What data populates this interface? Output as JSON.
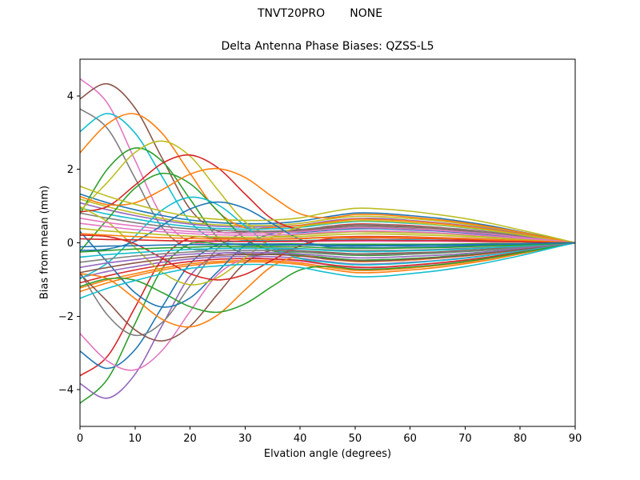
{
  "figure": {
    "suptitle": "TNVT20PRO       NONE",
    "title": "Delta Antenna Phase Biases: QZSS-L5",
    "background": "#ffffff"
  },
  "axes": {
    "xlabel": "Elvation angle (degrees)",
    "ylabel": "Bias from mean (mm)",
    "xticks": [
      0,
      10,
      20,
      30,
      40,
      50,
      60,
      70,
      80,
      90
    ],
    "yticks": [
      -4,
      -2,
      0,
      2,
      4
    ],
    "xlim": [
      0,
      90
    ],
    "ylim": [
      -5,
      5
    ],
    "spine_color": "#000000",
    "tick_color": "#000000",
    "text_color": "#000000"
  },
  "chart_data": {
    "type": "line",
    "title": "Delta Antenna Phase Biases: QZSS-L5",
    "subtitle": "TNVT20PRO       NONE",
    "xlabel": "Elvation angle (degrees)",
    "ylabel": "Bias from mean (mm)",
    "xlim": [
      0,
      90
    ],
    "ylim": [
      -5,
      5
    ],
    "grid": false,
    "legend": "none",
    "line_width": 1.6,
    "palette": [
      "#1f77b4",
      "#ff7f0e",
      "#2ca02c",
      "#d62728",
      "#9467bd",
      "#8c564b",
      "#e377c2",
      "#7f7f7f",
      "#bcbd22",
      "#17becf"
    ],
    "x": [
      0,
      5,
      10,
      15,
      20,
      25,
      30,
      35,
      40,
      45,
      50,
      55,
      60,
      65,
      70,
      75,
      80,
      85,
      90
    ],
    "series": [
      {
        "color": "#e377c2",
        "y": [
          4.47,
          3.8,
          2.25,
          0.7,
          0.03,
          0.03,
          0.03,
          0.03,
          0.03,
          0.04,
          0.04,
          0.04,
          0.04,
          0.04,
          0.03,
          0.02,
          0.02,
          0.01,
          0.0
        ]
      },
      {
        "color": "#2ca02c",
        "y": [
          -4.37,
          -3.71,
          -2.2,
          -0.69,
          -0.03,
          -0.03,
          -0.03,
          -0.03,
          -0.03,
          -0.04,
          -0.04,
          -0.04,
          -0.04,
          -0.04,
          -0.03,
          -0.02,
          -0.02,
          -0.01,
          0.0
        ]
      },
      {
        "color": "#1f77b4",
        "y": [
          1.33,
          1.09,
          0.9,
          0.74,
          0.62,
          0.55,
          0.52,
          0.53,
          0.59,
          0.71,
          0.81,
          0.8,
          0.74,
          0.67,
          0.57,
          0.45,
          0.3,
          0.15,
          0.0
        ]
      },
      {
        "color": "#7f7f7f",
        "y": [
          3.65,
          3.11,
          1.76,
          0.4,
          -0.16,
          -0.15,
          -0.14,
          -0.14,
          -0.16,
          -0.19,
          -0.21,
          -0.21,
          -0.2,
          -0.18,
          -0.15,
          -0.12,
          -0.08,
          -0.04,
          0.0
        ]
      },
      {
        "color": "#d62728",
        "y": [
          -3.62,
          -3.09,
          -1.76,
          -0.43,
          0.13,
          0.12,
          0.11,
          0.11,
          0.12,
          0.15,
          0.17,
          0.17,
          0.16,
          0.14,
          0.12,
          0.09,
          0.06,
          0.03,
          0.0
        ]
      },
      {
        "color": "#ff7f0e",
        "y": [
          -1.33,
          -1.09,
          -0.9,
          -0.74,
          -0.62,
          -0.55,
          -0.52,
          -0.53,
          -0.59,
          -0.71,
          -0.81,
          -0.8,
          -0.74,
          -0.67,
          -0.57,
          -0.45,
          -0.3,
          -0.15,
          0.0
        ]
      },
      {
        "color": "#8c564b",
        "y": [
          3.92,
          4.33,
          3.67,
          2.28,
          0.92,
          0.32,
          0.3,
          0.31,
          0.34,
          0.41,
          0.47,
          0.46,
          0.43,
          0.39,
          0.33,
          0.26,
          0.18,
          0.09,
          0.0
        ]
      },
      {
        "color": "#9467bd",
        "y": [
          -3.83,
          -4.23,
          -3.58,
          -2.23,
          -0.9,
          -0.32,
          -0.3,
          -0.31,
          -0.34,
          -0.41,
          -0.47,
          -0.46,
          -0.43,
          -0.39,
          -0.33,
          -0.26,
          -0.18,
          -0.09,
          0.0
        ]
      },
      {
        "color": "#bcbd22",
        "y": [
          1.19,
          0.98,
          0.81,
          0.66,
          0.55,
          0.49,
          0.47,
          0.48,
          0.53,
          0.64,
          0.72,
          0.71,
          0.66,
          0.6,
          0.51,
          0.4,
          0.27,
          0.14,
          0.0
        ]
      },
      {
        "color": "#17becf",
        "y": [
          3.03,
          3.52,
          2.99,
          1.78,
          0.58,
          0.06,
          0.06,
          0.06,
          0.06,
          0.08,
          0.09,
          0.08,
          0.08,
          0.07,
          0.06,
          0.05,
          0.03,
          0.02,
          0.0
        ]
      },
      {
        "color": "#1f77b4",
        "y": [
          -2.95,
          -3.42,
          -2.91,
          -1.73,
          -0.57,
          -0.06,
          -0.06,
          -0.06,
          -0.06,
          -0.08,
          -0.09,
          -0.08,
          -0.08,
          -0.07,
          -0.06,
          -0.05,
          -0.03,
          -0.02,
          0.0
        ]
      },
      {
        "color": "#ff7f0e",
        "y": [
          -1.23,
          -1.01,
          -0.84,
          -0.69,
          -0.57,
          -0.51,
          -0.48,
          -0.49,
          -0.55,
          -0.66,
          -0.75,
          -0.74,
          -0.69,
          -0.62,
          -0.53,
          -0.41,
          -0.28,
          -0.14,
          0.0
        ]
      },
      {
        "color": "#2ca02c",
        "y": [
          0.78,
          2.01,
          2.58,
          2.21,
          1.19,
          0.15,
          -0.3,
          -0.31,
          -0.34,
          -0.41,
          -0.47,
          -0.46,
          -0.43,
          -0.39,
          -0.33,
          -0.26,
          -0.18,
          -0.09,
          0.0
        ]
      },
      {
        "color": "#7f7f7f",
        "y": [
          -0.8,
          -1.97,
          -2.52,
          -2.16,
          -1.17,
          -0.16,
          0.28,
          0.28,
          0.31,
          0.38,
          0.43,
          0.42,
          0.39,
          0.35,
          0.3,
          0.24,
          0.16,
          0.08,
          0.0
        ]
      },
      {
        "color": "#9467bd",
        "y": [
          1.09,
          0.9,
          0.74,
          0.61,
          0.51,
          0.45,
          0.43,
          0.44,
          0.48,
          0.59,
          0.66,
          0.66,
          0.61,
          0.55,
          0.47,
          0.37,
          0.25,
          0.12,
          0.0
        ]
      },
      {
        "color": "#ff7f0e",
        "y": [
          2.45,
          3.24,
          3.51,
          2.97,
          1.89,
          0.86,
          0.41,
          0.42,
          0.47,
          0.56,
          0.64,
          0.63,
          0.59,
          0.53,
          0.45,
          0.35,
          0.24,
          0.12,
          0.0
        ]
      },
      {
        "color": "#e377c2",
        "y": [
          -2.47,
          -3.22,
          -3.46,
          -2.92,
          -1.87,
          -0.87,
          -0.44,
          -0.45,
          -0.5,
          -0.6,
          -0.68,
          -0.67,
          -0.62,
          -0.56,
          -0.48,
          -0.38,
          -0.26,
          -0.13,
          0.0
        ]
      },
      {
        "color": "#d62728",
        "y": [
          -1.09,
          -0.9,
          -0.74,
          -0.61,
          -0.51,
          -0.45,
          -0.43,
          -0.44,
          -0.48,
          -0.59,
          -0.66,
          -0.66,
          -0.61,
          -0.55,
          -0.47,
          -0.37,
          -0.25,
          -0.12,
          0.0
        ]
      },
      {
        "color": "#bcbd22",
        "y": [
          0.87,
          1.65,
          2.46,
          2.77,
          2.36,
          1.45,
          0.57,
          0.2,
          0.22,
          0.26,
          0.3,
          0.29,
          0.27,
          0.25,
          0.21,
          0.16,
          0.11,
          0.06,
          0.0
        ]
      },
      {
        "color": "#8c564b",
        "y": [
          -0.85,
          -1.6,
          -2.37,
          -2.67,
          -2.27,
          -1.4,
          -0.55,
          -0.2,
          -0.22,
          -0.26,
          -0.3,
          -0.29,
          -0.27,
          -0.25,
          -0.21,
          -0.16,
          -0.11,
          -0.06,
          0.0
        ]
      },
      {
        "color": "#17becf",
        "y": [
          0.95,
          0.78,
          0.65,
          0.53,
          0.44,
          0.39,
          0.37,
          0.38,
          0.42,
          0.51,
          0.58,
          0.57,
          0.53,
          0.48,
          0.41,
          0.32,
          0.22,
          0.11,
          0.0
        ]
      },
      {
        "color": "#2ca02c",
        "y": [
          -0.23,
          0.64,
          1.49,
          1.89,
          1.61,
          0.87,
          0.11,
          -0.22,
          -0.25,
          -0.3,
          -0.34,
          -0.34,
          -0.31,
          -0.28,
          -0.24,
          -0.19,
          -0.13,
          -0.06,
          0.0
        ]
      },
      {
        "color": "#1f77b4",
        "y": [
          0.31,
          -0.53,
          -1.36,
          -1.75,
          -1.5,
          -0.79,
          -0.07,
          0.25,
          0.28,
          0.34,
          0.38,
          0.38,
          0.35,
          0.32,
          0.27,
          0.21,
          0.14,
          0.07,
          0.0
        ]
      },
      {
        "color": "#9467bd",
        "y": [
          -0.95,
          -0.78,
          -0.65,
          -0.53,
          -0.44,
          -0.39,
          -0.37,
          -0.38,
          -0.42,
          -0.51,
          -0.58,
          -0.57,
          -0.53,
          -0.48,
          -0.41,
          -0.32,
          -0.22,
          -0.11,
          0.0
        ]
      },
      {
        "color": "#d62728",
        "y": [
          0.84,
          0.99,
          1.57,
          2.17,
          2.39,
          2.05,
          1.33,
          0.64,
          0.37,
          0.45,
          0.51,
          0.5,
          0.47,
          0.42,
          0.36,
          0.28,
          0.19,
          0.1,
          0.0
        ]
      },
      {
        "color": "#ff7f0e",
        "y": [
          -0.84,
          -0.98,
          -1.52,
          -2.09,
          -2.29,
          -1.97,
          -1.28,
          -0.63,
          -0.37,
          -0.45,
          -0.51,
          -0.5,
          -0.47,
          -0.42,
          -0.36,
          -0.28,
          -0.19,
          -0.1,
          0.0
        ]
      },
      {
        "color": "#7f7f7f",
        "y": [
          0.81,
          0.67,
          0.55,
          0.45,
          0.38,
          0.34,
          0.32,
          0.32,
          0.36,
          0.44,
          0.49,
          0.49,
          0.45,
          0.41,
          0.35,
          0.27,
          0.19,
          0.09,
          0.0
        ]
      },
      {
        "color": "#17becf",
        "y": [
          -0.98,
          -0.55,
          0.18,
          0.9,
          1.24,
          1.04,
          0.46,
          -0.13,
          -0.43,
          -0.53,
          -0.6,
          -0.59,
          -0.55,
          -0.49,
          -0.42,
          -0.33,
          -0.22,
          -0.11,
          0.0
        ]
      },
      {
        "color": "#bcbd22",
        "y": [
          0.98,
          0.57,
          -0.13,
          -0.81,
          -1.14,
          -0.95,
          -0.41,
          0.15,
          0.43,
          0.53,
          0.6,
          0.59,
          0.55,
          0.49,
          0.42,
          0.33,
          0.22,
          0.11,
          0.0
        ]
      },
      {
        "color": "#8c564b",
        "y": [
          -0.81,
          -0.67,
          -0.55,
          -0.45,
          -0.38,
          -0.34,
          -0.32,
          -0.32,
          -0.36,
          -0.44,
          -0.49,
          -0.49,
          -0.45,
          -0.41,
          -0.35,
          -0.27,
          -0.19,
          -0.09,
          0.0
        ]
      },
      {
        "color": "#ff7f0e",
        "y": [
          1.26,
          1.04,
          1.09,
          1.45,
          1.87,
          2.02,
          1.78,
          1.25,
          0.79,
          0.68,
          0.77,
          0.76,
          0.7,
          0.63,
          0.54,
          0.42,
          0.29,
          0.14,
          0.0
        ]
      },
      {
        "color": "#2ca02c",
        "y": [
          -1.19,
          -0.98,
          -1.02,
          -1.36,
          -1.74,
          -1.89,
          -1.66,
          -1.18,
          -0.74,
          -0.64,
          -0.72,
          -0.71,
          -0.66,
          -0.6,
          -0.51,
          -0.4,
          -0.27,
          -0.14,
          0.0
        ]
      },
      {
        "color": "#e377c2",
        "y": [
          0.67,
          0.55,
          0.46,
          0.37,
          0.31,
          0.28,
          0.26,
          0.27,
          0.3,
          0.36,
          0.41,
          0.4,
          0.37,
          0.34,
          0.29,
          0.23,
          0.15,
          0.08,
          0.0
        ]
      },
      {
        "color": "#1f77b4",
        "y": [
          -0.21,
          -0.17,
          0.04,
          0.48,
          0.92,
          1.11,
          0.94,
          0.52,
          0.09,
          -0.11,
          -0.13,
          -0.13,
          -0.12,
          -0.11,
          -0.09,
          -0.07,
          -0.05,
          -0.02,
          0.0
        ]
      },
      {
        "color": "#d62728",
        "y": [
          0.21,
          0.17,
          -0.03,
          -0.43,
          -0.84,
          -1.01,
          -0.86,
          -0.47,
          -0.08,
          0.11,
          0.13,
          0.13,
          0.12,
          0.11,
          0.09,
          0.07,
          0.05,
          0.02,
          0.0
        ]
      },
      {
        "color": "#9467bd",
        "y": [
          -0.67,
          -0.55,
          -0.46,
          -0.37,
          -0.31,
          -0.28,
          -0.26,
          -0.27,
          -0.3,
          -0.36,
          -0.41,
          -0.4,
          -0.37,
          -0.34,
          -0.29,
          -0.23,
          -0.15,
          -0.08,
          0.0
        ]
      },
      {
        "color": "#bcbd22",
        "y": [
          1.54,
          1.27,
          1.05,
          0.86,
          0.72,
          0.64,
          0.61,
          0.62,
          0.68,
          0.83,
          0.94,
          0.92,
          0.86,
          0.77,
          0.66,
          0.52,
          0.35,
          0.18,
          0.0
        ]
      },
      {
        "color": "#17becf",
        "y": [
          -1.51,
          -1.24,
          -1.03,
          -0.84,
          -0.7,
          -0.63,
          -0.59,
          -0.6,
          -0.67,
          -0.81,
          -0.92,
          -0.91,
          -0.84,
          -0.76,
          -0.65,
          -0.51,
          -0.35,
          -0.17,
          0.0
        ]
      },
      {
        "color": "#e377c2",
        "y": [
          0.53,
          0.44,
          0.36,
          0.3,
          0.25,
          0.22,
          0.21,
          0.21,
          0.24,
          0.29,
          0.32,
          0.32,
          0.3,
          0.27,
          0.23,
          0.18,
          0.12,
          0.06,
          0.0
        ]
      },
      {
        "color": "#7f7f7f",
        "y": [
          -0.53,
          -0.44,
          -0.36,
          -0.3,
          -0.25,
          -0.22,
          -0.21,
          -0.21,
          -0.24,
          -0.29,
          -0.32,
          -0.32,
          -0.3,
          -0.27,
          -0.23,
          -0.18,
          -0.12,
          -0.06,
          0.0
        ]
      },
      {
        "color": "#bcbd22",
        "y": [
          0.39,
          0.32,
          0.27,
          0.22,
          0.18,
          0.16,
          0.15,
          0.16,
          0.17,
          0.21,
          0.24,
          0.24,
          0.22,
          0.2,
          0.17,
          0.13,
          0.09,
          0.04,
          0.0
        ]
      },
      {
        "color": "#17becf",
        "y": [
          -0.39,
          -0.32,
          -0.27,
          -0.22,
          -0.18,
          -0.16,
          -0.15,
          -0.16,
          -0.17,
          -0.21,
          -0.24,
          -0.24,
          -0.22,
          -0.2,
          -0.17,
          -0.13,
          -0.09,
          -0.04,
          0.0
        ]
      },
      {
        "color": "#ff7f0e",
        "y": [
          0.25,
          0.21,
          0.17,
          0.14,
          0.12,
          0.1,
          0.1,
          0.1,
          0.11,
          0.14,
          0.15,
          0.15,
          0.14,
          0.13,
          0.11,
          0.08,
          0.06,
          0.03,
          0.0
        ]
      },
      {
        "color": "#2ca02c",
        "y": [
          -0.25,
          -0.21,
          -0.17,
          -0.14,
          -0.12,
          -0.1,
          -0.1,
          -0.1,
          -0.11,
          -0.14,
          -0.15,
          -0.15,
          -0.14,
          -0.13,
          -0.11,
          -0.08,
          -0.06,
          -0.03,
          0.0
        ]
      },
      {
        "color": "#d62728",
        "y": [
          0.11,
          0.09,
          0.08,
          0.06,
          0.05,
          0.05,
          0.04,
          0.04,
          0.05,
          0.06,
          0.07,
          0.07,
          0.06,
          0.06,
          0.05,
          0.04,
          0.03,
          0.01,
          0.0
        ]
      },
      {
        "color": "#1f77b4",
        "y": [
          -0.11,
          -0.09,
          -0.08,
          -0.06,
          -0.05,
          -0.05,
          -0.04,
          -0.04,
          -0.05,
          -0.06,
          -0.07,
          -0.07,
          -0.06,
          -0.06,
          -0.05,
          -0.04,
          -0.03,
          -0.01,
          0.0
        ]
      }
    ]
  }
}
